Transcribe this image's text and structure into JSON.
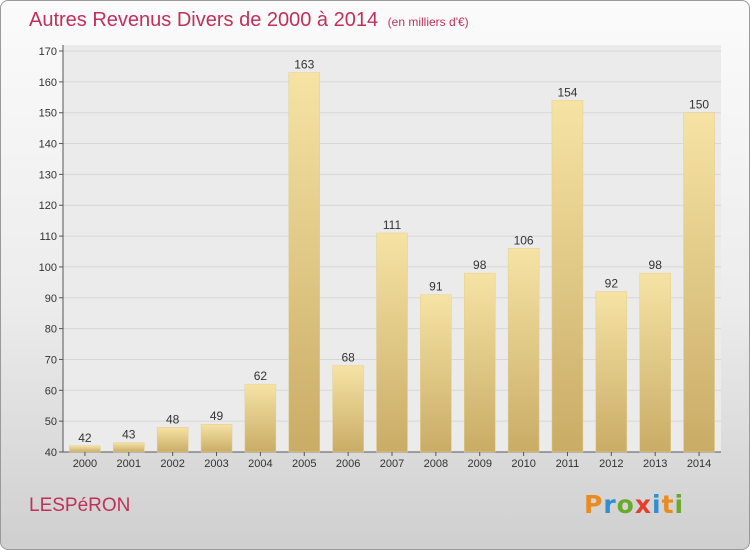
{
  "header": {
    "title": "Autres Revenus Divers de 2000 à 2014",
    "subtitle": "(en milliers d'€)"
  },
  "footer": {
    "place": "LESPéRON",
    "brand": "Proxiti",
    "brand_letters": [
      {
        "char": "P",
        "color": "#e98c1f"
      },
      {
        "char": "r",
        "color": "#2f8fd0"
      },
      {
        "char": "o",
        "color": "#6aaa2a"
      },
      {
        "char": "x",
        "color": "#e23f2c"
      },
      {
        "char": "i",
        "color": "#2f8fd0"
      },
      {
        "char": "t",
        "color": "#e98c1f"
      },
      {
        "char": "i",
        "color": "#6aaa2a"
      }
    ]
  },
  "colors": {
    "title": "#c0305a",
    "bar_light": "#f6e3a4",
    "bar_dark": "#c9ac66",
    "grid": "#d7d7d7",
    "axis": "#555555"
  },
  "chart_data": {
    "type": "bar",
    "categories": [
      "2000",
      "2001",
      "2002",
      "2003",
      "2004",
      "2005",
      "2006",
      "2007",
      "2008",
      "2009",
      "2010",
      "2011",
      "2012",
      "2013",
      "2014"
    ],
    "values": [
      42,
      43,
      48,
      49,
      62,
      163,
      68,
      111,
      91,
      98,
      106,
      154,
      92,
      98,
      150
    ],
    "ylim": [
      40,
      170
    ],
    "yticks": [
      40,
      50,
      60,
      70,
      80,
      90,
      100,
      110,
      120,
      130,
      140,
      150,
      160,
      170
    ],
    "grid": true,
    "data_labels": true
  }
}
